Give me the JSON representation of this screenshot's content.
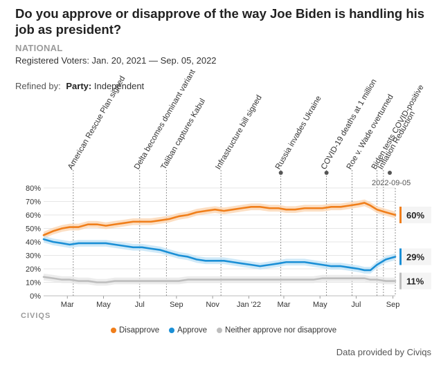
{
  "page": {
    "title": "Do you approve or disapprove of the way Joe Biden is handling his job as president?",
    "scope": "NATIONAL",
    "subtitle": "Registered Voters: Jan. 20, 2021 — Sep. 05, 2022",
    "refined_label": "Refined by:",
    "refined_key": "Party:",
    "refined_value": "Independent",
    "brand": "CIVIQS",
    "credit": "Data provided by Civiqs"
  },
  "chart_data": {
    "type": "line",
    "x_range": [
      "2021-01-20",
      "2022-09-05"
    ],
    "ylim": [
      0,
      80
    ],
    "y_ticks": [
      "0%",
      "10%",
      "20%",
      "30%",
      "40%",
      "50%",
      "60%",
      "70%",
      "80%"
    ],
    "x_ticks": [
      {
        "date": "2021-03-01",
        "label": "Mar"
      },
      {
        "date": "2021-05-01",
        "label": "May"
      },
      {
        "date": "2021-07-01",
        "label": "Jul"
      },
      {
        "date": "2021-09-01",
        "label": "Sep"
      },
      {
        "date": "2021-11-01",
        "label": "Nov"
      },
      {
        "date": "2022-01-01",
        "label": "Jan '22"
      },
      {
        "date": "2022-03-01",
        "label": "Mar"
      },
      {
        "date": "2022-05-01",
        "label": "May"
      },
      {
        "date": "2022-07-01",
        "label": "Jul"
      },
      {
        "date": "2022-09-01",
        "label": "Sep"
      }
    ],
    "grid": true,
    "legend_position": "bottom",
    "series": [
      {
        "name": "Disapprove",
        "color": "#f07e1a",
        "band_color": "#fbd3ad",
        "end_label": "60%",
        "points": [
          [
            "2021-01-20",
            45
          ],
          [
            "2021-02-05",
            48
          ],
          [
            "2021-02-20",
            50
          ],
          [
            "2021-03-05",
            51
          ],
          [
            "2021-03-20",
            51
          ],
          [
            "2021-04-05",
            53
          ],
          [
            "2021-04-20",
            53
          ],
          [
            "2021-05-05",
            52
          ],
          [
            "2021-05-20",
            53
          ],
          [
            "2021-06-05",
            54
          ],
          [
            "2021-06-20",
            55
          ],
          [
            "2021-07-05",
            55
          ],
          [
            "2021-07-20",
            55
          ],
          [
            "2021-08-05",
            56
          ],
          [
            "2021-08-20",
            57
          ],
          [
            "2021-09-05",
            59
          ],
          [
            "2021-09-20",
            60
          ],
          [
            "2021-10-05",
            62
          ],
          [
            "2021-10-20",
            63
          ],
          [
            "2021-11-05",
            64
          ],
          [
            "2021-11-20",
            63
          ],
          [
            "2021-12-05",
            64
          ],
          [
            "2021-12-20",
            65
          ],
          [
            "2022-01-05",
            66
          ],
          [
            "2022-01-20",
            66
          ],
          [
            "2022-02-05",
            65
          ],
          [
            "2022-02-20",
            65
          ],
          [
            "2022-03-05",
            64
          ],
          [
            "2022-03-20",
            64
          ],
          [
            "2022-04-05",
            65
          ],
          [
            "2022-04-20",
            65
          ],
          [
            "2022-05-05",
            65
          ],
          [
            "2022-05-20",
            66
          ],
          [
            "2022-06-05",
            66
          ],
          [
            "2022-06-20",
            67
          ],
          [
            "2022-07-05",
            68
          ],
          [
            "2022-07-15",
            69
          ],
          [
            "2022-07-25",
            67
          ],
          [
            "2022-08-05",
            64
          ],
          [
            "2022-08-20",
            62
          ],
          [
            "2022-09-05",
            60
          ]
        ]
      },
      {
        "name": "Approve",
        "color": "#1a8fd6",
        "band_color": "#bfe2f6",
        "end_label": "29%",
        "points": [
          [
            "2021-01-20",
            42
          ],
          [
            "2021-02-05",
            40
          ],
          [
            "2021-02-20",
            39
          ],
          [
            "2021-03-05",
            38
          ],
          [
            "2021-03-20",
            39
          ],
          [
            "2021-04-05",
            39
          ],
          [
            "2021-04-20",
            39
          ],
          [
            "2021-05-05",
            39
          ],
          [
            "2021-05-20",
            38
          ],
          [
            "2021-06-05",
            37
          ],
          [
            "2021-06-20",
            36
          ],
          [
            "2021-07-05",
            36
          ],
          [
            "2021-07-20",
            35
          ],
          [
            "2021-08-05",
            34
          ],
          [
            "2021-08-20",
            32
          ],
          [
            "2021-09-05",
            30
          ],
          [
            "2021-09-20",
            29
          ],
          [
            "2021-10-05",
            27
          ],
          [
            "2021-10-20",
            26
          ],
          [
            "2021-11-05",
            26
          ],
          [
            "2021-11-20",
            26
          ],
          [
            "2021-12-05",
            25
          ],
          [
            "2021-12-20",
            24
          ],
          [
            "2022-01-05",
            23
          ],
          [
            "2022-01-20",
            22
          ],
          [
            "2022-02-05",
            23
          ],
          [
            "2022-02-20",
            24
          ],
          [
            "2022-03-05",
            25
          ],
          [
            "2022-03-20",
            25
          ],
          [
            "2022-04-05",
            25
          ],
          [
            "2022-04-20",
            24
          ],
          [
            "2022-05-05",
            23
          ],
          [
            "2022-05-20",
            22
          ],
          [
            "2022-06-05",
            22
          ],
          [
            "2022-06-20",
            21
          ],
          [
            "2022-07-05",
            20
          ],
          [
            "2022-07-15",
            19
          ],
          [
            "2022-07-25",
            19
          ],
          [
            "2022-08-05",
            23
          ],
          [
            "2022-08-20",
            27
          ],
          [
            "2022-09-05",
            29
          ]
        ]
      },
      {
        "name": "Neither approve nor disapprove",
        "color": "#bdbdbd",
        "band_color": "#e6e6e6",
        "end_label": "11%",
        "points": [
          [
            "2021-01-20",
            14
          ],
          [
            "2021-02-05",
            13
          ],
          [
            "2021-02-20",
            12
          ],
          [
            "2021-03-05",
            12
          ],
          [
            "2021-03-20",
            11
          ],
          [
            "2021-04-05",
            11
          ],
          [
            "2021-04-20",
            10
          ],
          [
            "2021-05-05",
            10
          ],
          [
            "2021-05-20",
            11
          ],
          [
            "2021-06-05",
            11
          ],
          [
            "2021-06-20",
            11
          ],
          [
            "2021-07-05",
            11
          ],
          [
            "2021-07-20",
            11
          ],
          [
            "2021-08-05",
            11
          ],
          [
            "2021-08-20",
            11
          ],
          [
            "2021-09-05",
            11
          ],
          [
            "2021-09-20",
            12
          ],
          [
            "2021-10-05",
            12
          ],
          [
            "2021-10-20",
            12
          ],
          [
            "2021-11-05",
            12
          ],
          [
            "2021-11-20",
            12
          ],
          [
            "2021-12-05",
            12
          ],
          [
            "2021-12-20",
            12
          ],
          [
            "2022-01-05",
            12
          ],
          [
            "2022-01-20",
            12
          ],
          [
            "2022-02-05",
            12
          ],
          [
            "2022-02-20",
            12
          ],
          [
            "2022-03-05",
            12
          ],
          [
            "2022-03-20",
            12
          ],
          [
            "2022-04-05",
            12
          ],
          [
            "2022-04-20",
            12
          ],
          [
            "2022-05-05",
            13
          ],
          [
            "2022-05-20",
            13
          ],
          [
            "2022-06-05",
            13
          ],
          [
            "2022-06-20",
            13
          ],
          [
            "2022-07-05",
            13
          ],
          [
            "2022-07-15",
            13
          ],
          [
            "2022-07-25",
            12
          ],
          [
            "2022-08-05",
            12
          ],
          [
            "2022-08-20",
            11
          ],
          [
            "2022-09-05",
            11
          ]
        ]
      }
    ],
    "annotations": [
      {
        "date": "2021-03-11",
        "label": "American Rescue Plan signed",
        "marker": false
      },
      {
        "date": "2021-07-01",
        "label": "Delta becomes dominant variant",
        "marker": false
      },
      {
        "date": "2021-08-15",
        "label": "Taliban captures Kabul",
        "marker": false
      },
      {
        "date": "2021-11-15",
        "label": "Infrastructure bill signed",
        "marker": false
      },
      {
        "date": "2022-02-24",
        "label": "Russia invades Ukraine",
        "marker": true
      },
      {
        "date": "2022-05-12",
        "label": "COVID-19 deaths at 1 million",
        "marker": true
      },
      {
        "date": "2022-06-24",
        "label": "Roe v. Wade overturned",
        "marker": false
      },
      {
        "date": "2022-08-05",
        "label": "Biden tests COVID-positive",
        "marker": false
      },
      {
        "date": "2022-08-16",
        "label": "Inflation Reduction",
        "marker": false
      }
    ],
    "current_marker": {
      "date": "2022-09-05",
      "label": "2022-09-05"
    }
  }
}
